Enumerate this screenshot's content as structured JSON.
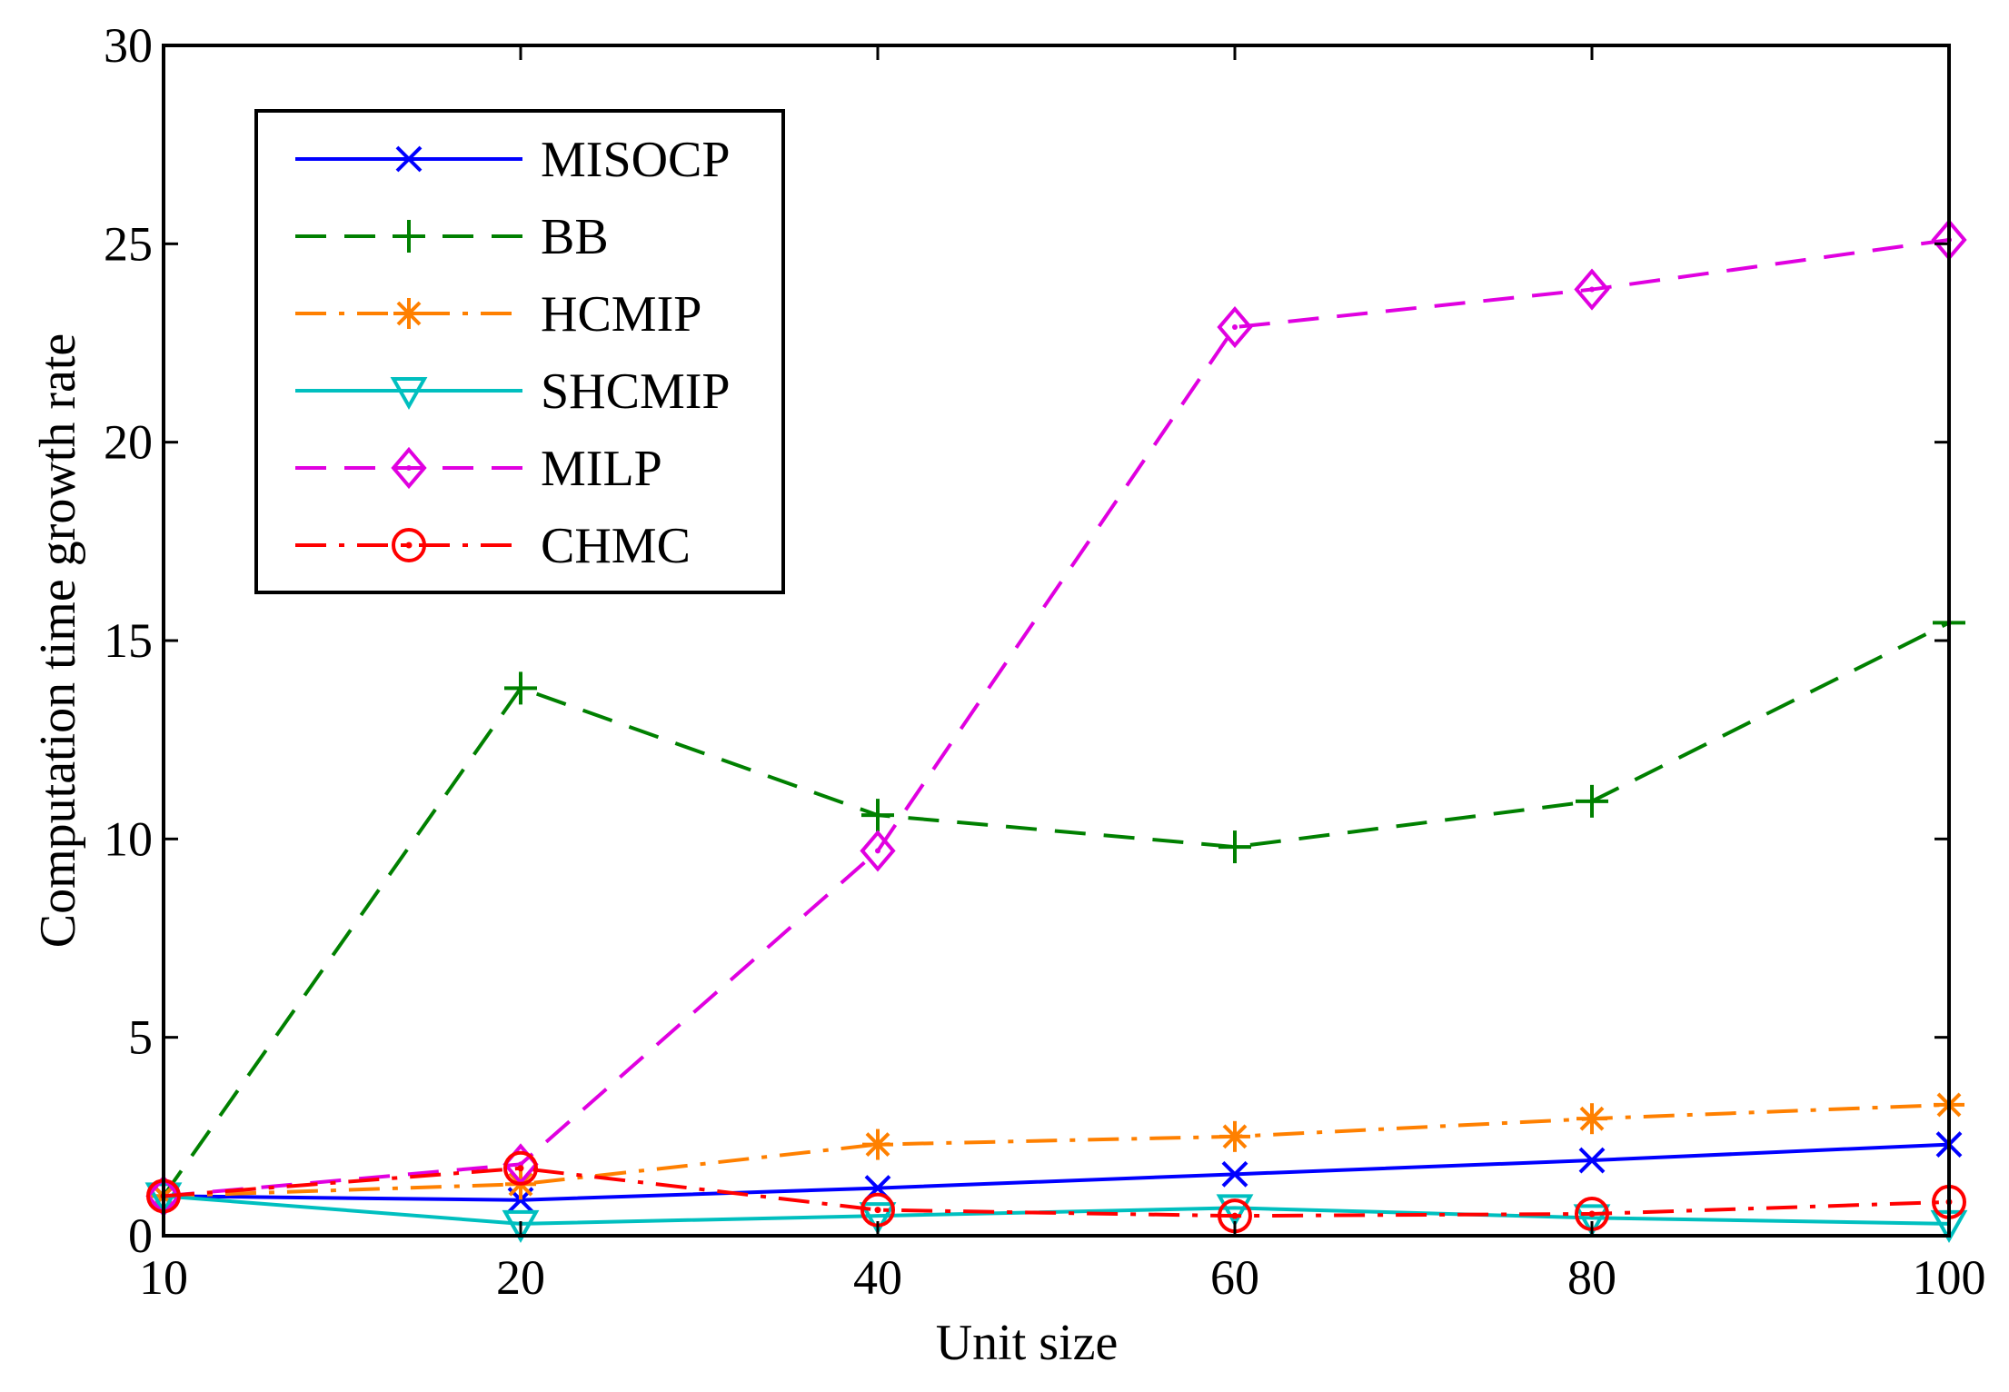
{
  "chart_data": {
    "type": "line",
    "title": "",
    "xlabel": "Unit size",
    "ylabel": "Computation time growth rate",
    "categories": [
      "10",
      "20",
      "40",
      "60",
      "80",
      "100"
    ],
    "y_ticks": [
      "0",
      "5",
      "10",
      "15",
      "20",
      "25",
      "30"
    ],
    "ylim": [
      0,
      30
    ],
    "grid": false,
    "legend_position": "top-left",
    "series": [
      {
        "name": "MISOCP",
        "color": "#0000ff",
        "dash": "solid",
        "marker": "x",
        "values": [
          1.0,
          0.9,
          1.2,
          1.55,
          1.9,
          2.3
        ]
      },
      {
        "name": "BB",
        "color": "#008000",
        "dash": "dashed",
        "marker": "plus",
        "values": [
          1.0,
          13.8,
          10.6,
          9.8,
          10.95,
          15.45
        ]
      },
      {
        "name": "HCMIP",
        "color": "#ff8000",
        "dash": "dashdot",
        "marker": "star",
        "values": [
          1.0,
          1.3,
          2.3,
          2.5,
          2.95,
          3.3
        ]
      },
      {
        "name": "SHCMIP",
        "color": "#00bfbf",
        "dash": "solid",
        "marker": "triangle-down",
        "values": [
          1.0,
          0.3,
          0.5,
          0.7,
          0.45,
          0.3
        ]
      },
      {
        "name": "MILP",
        "color": "#e000e0",
        "dash": "dashed",
        "marker": "diamond",
        "values": [
          1.0,
          1.8,
          9.7,
          22.9,
          23.85,
          25.1
        ]
      },
      {
        "name": "CHMC",
        "color": "#ff0000",
        "dash": "dashdot",
        "marker": "circle",
        "values": [
          1.0,
          1.7,
          0.65,
          0.5,
          0.55,
          0.85
        ]
      }
    ]
  }
}
